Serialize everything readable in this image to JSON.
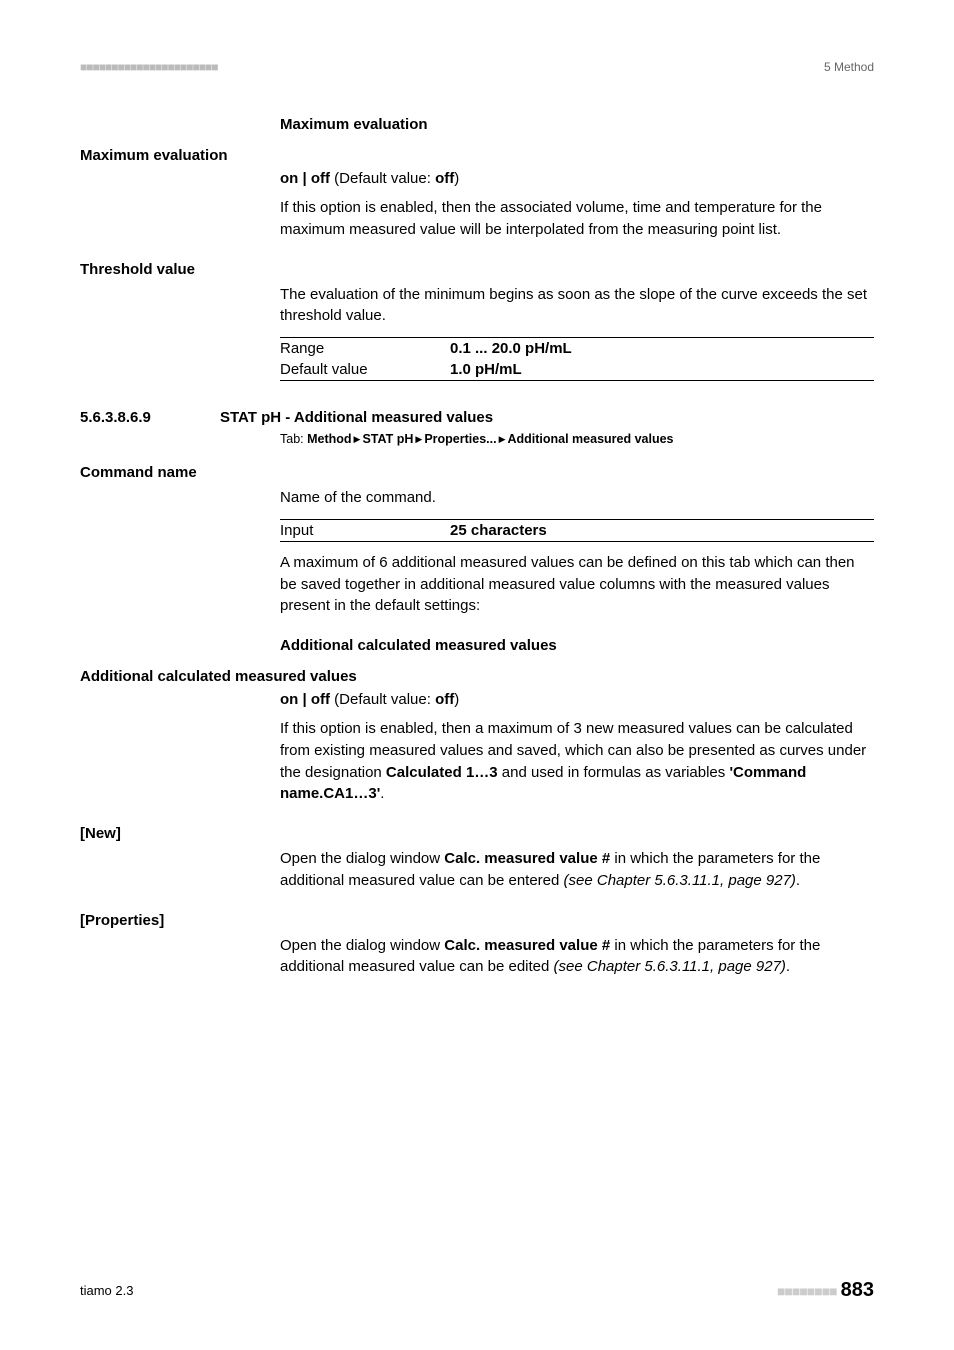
{
  "header": {
    "left_marks": "■■■■■■■■■■■■■■■■■■■■■■",
    "right": "5 Method"
  },
  "max_eval": {
    "heading": "Maximum evaluation",
    "label": "Maximum evaluation",
    "onoff_prefix": "on | off",
    "onoff_mid": " (Default value: ",
    "onoff_val": "off",
    "onoff_suffix": ")",
    "desc": "If this option is enabled, then the associated volume, time and temperature for the maximum measured value will be interpolated from the measuring point list."
  },
  "threshold": {
    "label": "Threshold value",
    "desc": "The evaluation of the minimum begins as soon as the slope of the curve exceeds the set threshold value.",
    "range_key": "Range",
    "range_val": "0.1 ... 20.0 pH/mL",
    "default_key": "Default value",
    "default_val": "1.0 pH/mL"
  },
  "subsection": {
    "num": "5.6.3.8.6.9",
    "title": "STAT pH - Additional measured values",
    "tab_prefix": "Tab: ",
    "tab_parts": [
      "Method",
      "STAT pH",
      "Properties...",
      "Additional measured values"
    ]
  },
  "cmd": {
    "label": "Command name",
    "desc1": "Name of the command.",
    "input_key": "Input",
    "input_val": "25 characters",
    "desc2": "A maximum of 6 additional measured values can be defined on this tab which can then be saved together in additional measured value columns with the measured values present in the default settings:"
  },
  "addcalc": {
    "heading": "Additional calculated measured values",
    "label": "Additional calculated measured values",
    "onoff_prefix": "on | off",
    "onoff_mid": " (Default value: ",
    "onoff_val": "off",
    "onoff_suffix": ")",
    "desc_pre": "If this option is enabled, then a maximum of 3 new measured values can be calculated from existing measured values and saved, which can also be presented as curves under the designation ",
    "desc_b1": "Calculated 1…3",
    "desc_mid": " and used in formulas as variables ",
    "desc_b2": "'Command name.CA1…3'",
    "desc_end": "."
  },
  "new_btn": {
    "label": "[New]",
    "desc_pre": "Open the dialog window ",
    "desc_b": "Calc. measured value #",
    "desc_mid": " in which the parameters for the additional measured value can be entered ",
    "desc_it": "(see Chapter 5.6.3.11.1, page 927)",
    "desc_end": "."
  },
  "props_btn": {
    "label": "[Properties]",
    "desc_pre": "Open the dialog window ",
    "desc_b": "Calc. measured value #",
    "desc_mid": " in which the parameters for the additional measured value can be edited ",
    "desc_it": "(see Chapter 5.6.3.11.1, page 927)",
    "desc_end": "."
  },
  "footer": {
    "left": "tiamo 2.3",
    "dashes": "■■■■■■■■",
    "page": "883"
  }
}
